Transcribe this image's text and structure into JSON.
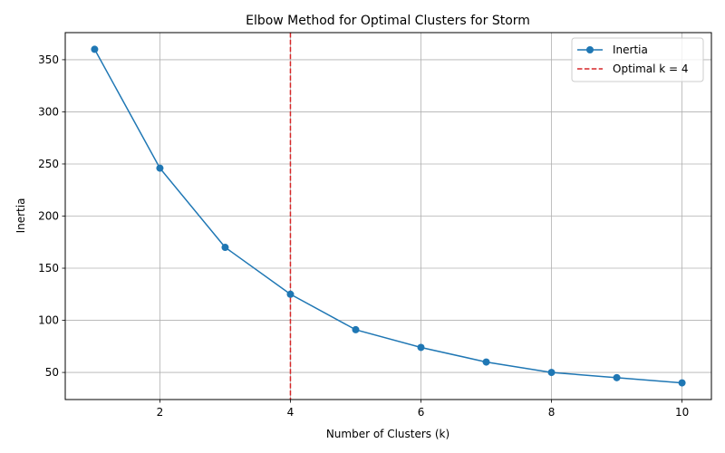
{
  "chart_data": {
    "type": "line",
    "title": "Elbow Method for Optimal Clusters for Storm",
    "xlabel": "Number of Clusters (k)",
    "ylabel": "Inertia",
    "x": [
      1,
      2,
      3,
      4,
      5,
      6,
      7,
      8,
      9,
      10
    ],
    "series": [
      {
        "name": "Inertia",
        "values": [
          360,
          246,
          170,
          125,
          91,
          74,
          60,
          50,
          45,
          40
        ],
        "color": "#1f77b4",
        "marker": "circle"
      }
    ],
    "reference_line": {
      "label": "Optimal k = 4",
      "x": 4,
      "color": "#d62728",
      "style": "dashed"
    },
    "xlim": [
      0.55,
      10.45
    ],
    "ylim": [
      24,
      376
    ],
    "xticks": [
      2,
      4,
      6,
      8,
      10
    ],
    "yticks": [
      50,
      100,
      150,
      200,
      250,
      300,
      350
    ],
    "grid": true,
    "legend_position": "top-right"
  }
}
